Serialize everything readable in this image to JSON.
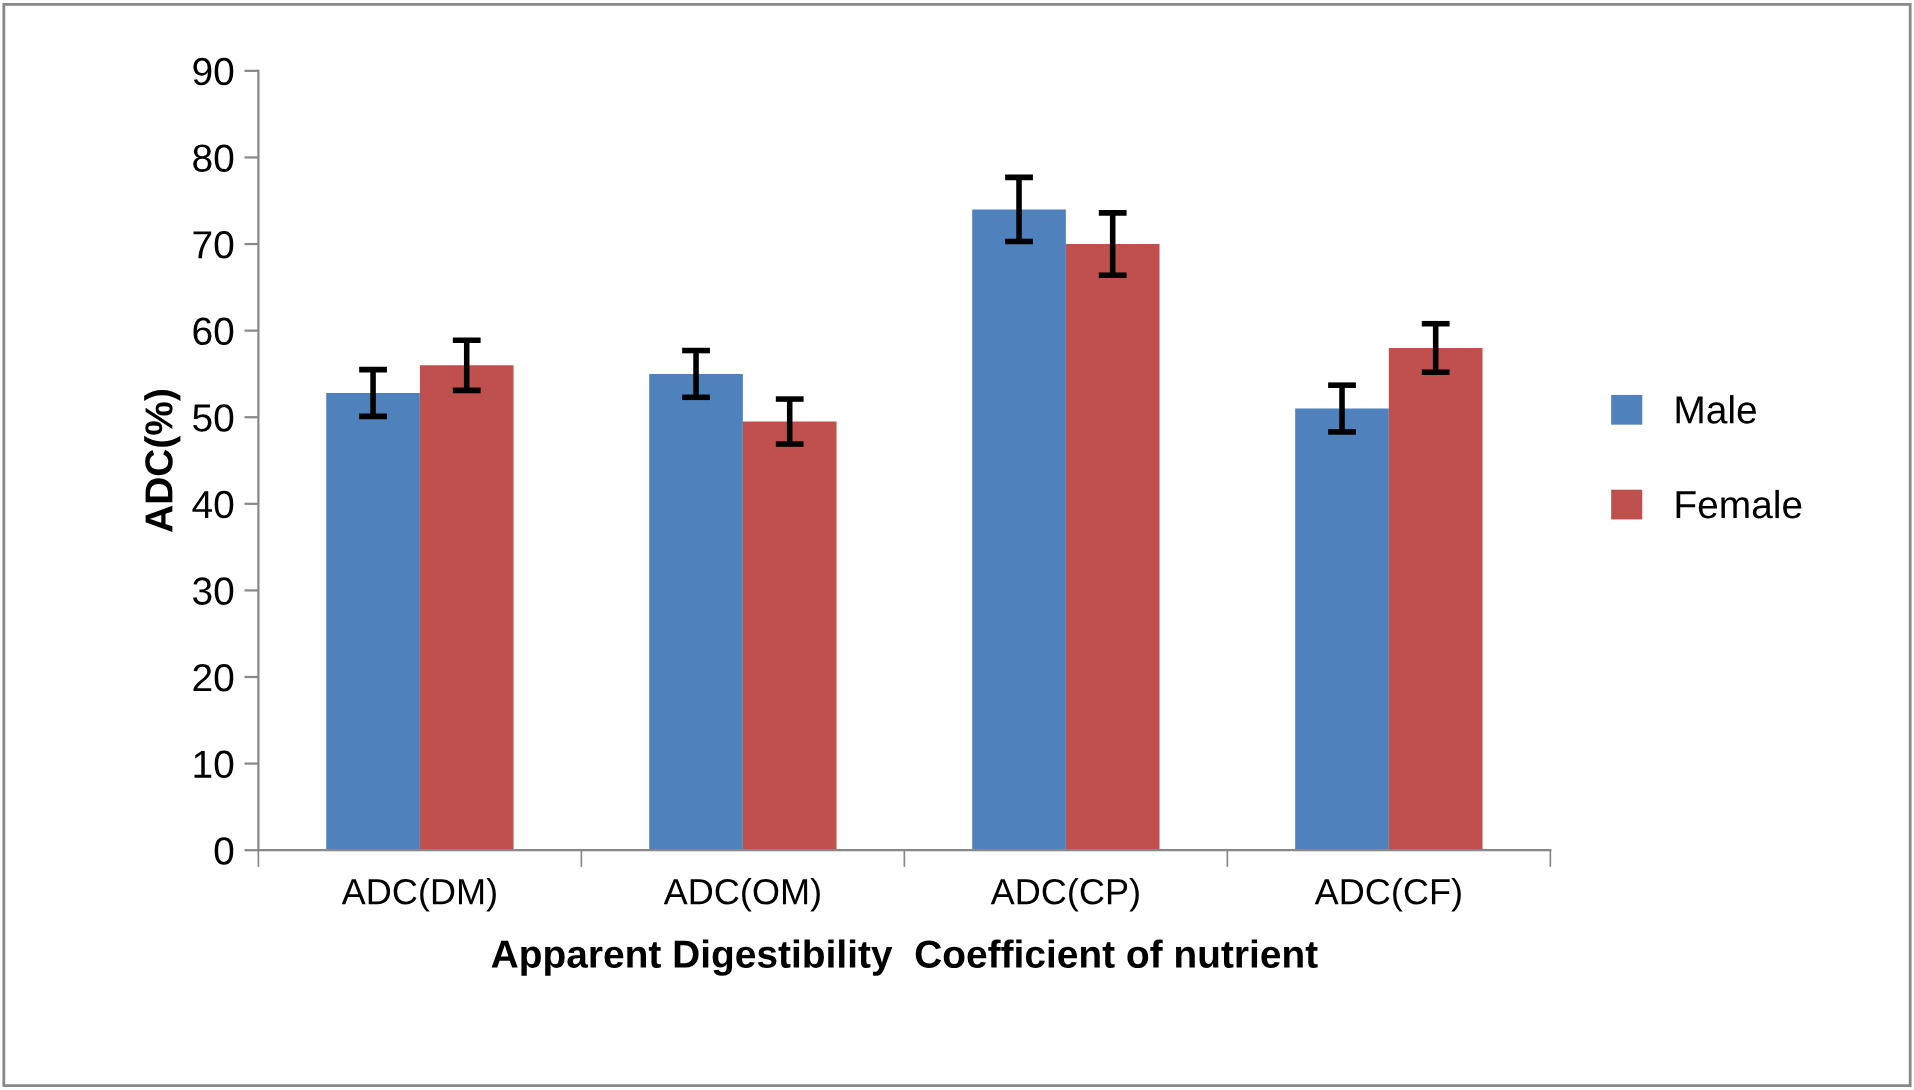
{
  "chart_data": {
    "type": "bar",
    "xlabel": "Apparent Digestibility  Coefficient of nutrient",
    "ylabel": "ADC(%)",
    "categories": [
      "ADC(DM)",
      "ADC(OM)",
      "ADC(CP)",
      "ADC(CF)"
    ],
    "series": [
      {
        "name": "Male",
        "color": "#4f81bd",
        "values": [
          52.8,
          55,
          74,
          51
        ],
        "errors": [
          2.7,
          2.7,
          3.7,
          2.7
        ]
      },
      {
        "name": "Female",
        "color": "#c0504d",
        "values": [
          56,
          49.5,
          70,
          58
        ],
        "errors": [
          2.9,
          2.6,
          3.6,
          2.8
        ]
      }
    ],
    "ylim": [
      0,
      90
    ],
    "yticks": [
      0,
      10,
      20,
      30,
      40,
      50,
      60,
      70,
      80,
      90
    ],
    "grid": false,
    "legend": "right"
  }
}
